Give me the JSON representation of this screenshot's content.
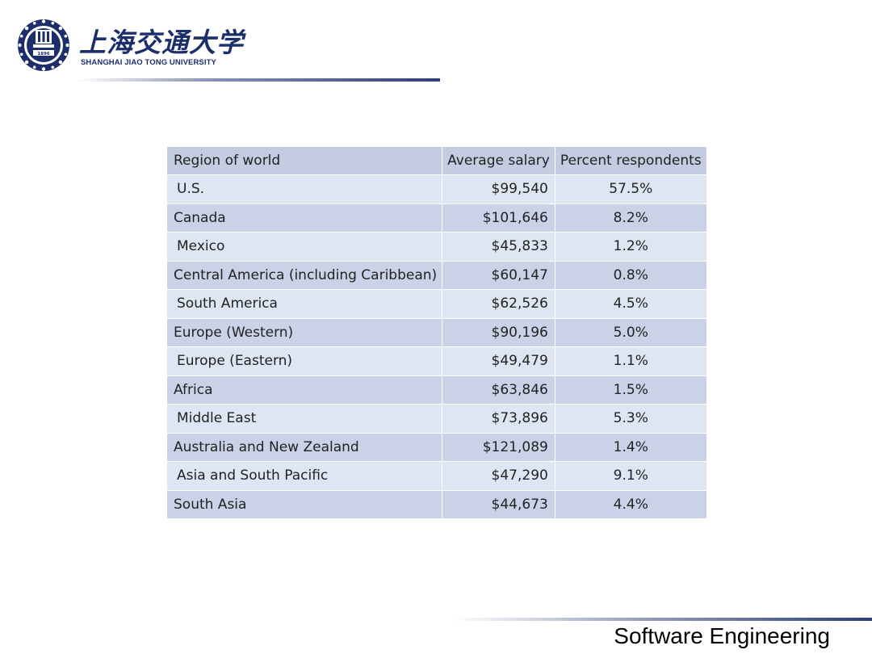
{
  "header": {
    "logo_cn": "上海交通大学",
    "logo_en": "SHANGHAI  JIAO TONG  UNIVERSITY",
    "seal_year": "1896"
  },
  "table": {
    "headers": [
      "Region of world",
      "Average salary",
      "Percent respondents"
    ],
    "rows": [
      [
        "U.S.",
        "$99,540",
        "57.5%"
      ],
      [
        "Canada",
        "$101,646",
        "8.2%"
      ],
      [
        "Mexico",
        "$45,833",
        "1.2%"
      ],
      [
        "Central America (including Caribbean)",
        "$60,147",
        "0.8%"
      ],
      [
        "South America",
        "$62,526",
        "4.5%"
      ],
      [
        "Europe (Western)",
        "$90,196",
        "5.0%"
      ],
      [
        "Europe (Eastern)",
        "$49,479",
        "1.1%"
      ],
      [
        "Africa",
        "$63,846",
        "1.5%"
      ],
      [
        "Middle East",
        "$73,896",
        "5.3%"
      ],
      [
        "Australia and New Zealand",
        "$121,089",
        "1.4%"
      ],
      [
        "Asia and South Pacific",
        "$47,290",
        "9.1%"
      ],
      [
        "South Asia",
        "$44,673",
        "4.4%"
      ]
    ]
  },
  "footer": {
    "label": "Software Engineering"
  },
  "colors": {
    "brand": "#1c2f6b",
    "header_row": "#c3cce0",
    "row_light": "#dde6f2",
    "row_dark": "#c9d2e6"
  }
}
